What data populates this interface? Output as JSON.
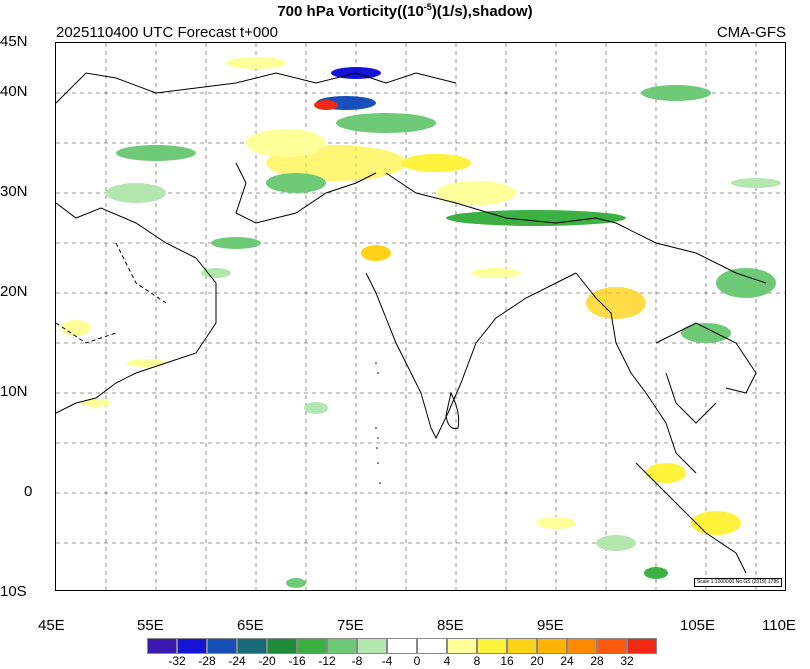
{
  "title_prefix": "700 hPa Vorticity((10",
  "title_exp": "-5",
  "title_suffix": ")(1/s),shadow)",
  "subtitle_left": "2025110400 UTC Forecast t+000",
  "subtitle_right": "CMA-GFS",
  "lat_labels": [
    "45N",
    "40N",
    "30N",
    "20N",
    "10N",
    "0",
    "10S"
  ],
  "lon_labels": [
    "45E",
    "55E",
    "65E",
    "75E",
    "85E",
    "95E",
    "105E",
    "110E"
  ],
  "colorbar": {
    "colors": [
      "#3a1ab0",
      "#1414d8",
      "#1650b8",
      "#1a6a7a",
      "#1f8a3a",
      "#3cb043",
      "#6fca78",
      "#b4e6b0",
      "#ffffff",
      "#ffffff",
      "#ffff99",
      "#fff23a",
      "#ffd21a",
      "#ffb400",
      "#ff8a00",
      "#ff5a10",
      "#f02814"
    ],
    "labels": [
      "-32",
      "-28",
      "-24",
      "-20",
      "-16",
      "-12",
      "-8",
      "-4",
      "0",
      "4",
      "8",
      "16",
      "20",
      "24",
      "28",
      "32"
    ]
  },
  "scale_note": "Scale 1:1000000 No:GS (2019) 1786"
}
